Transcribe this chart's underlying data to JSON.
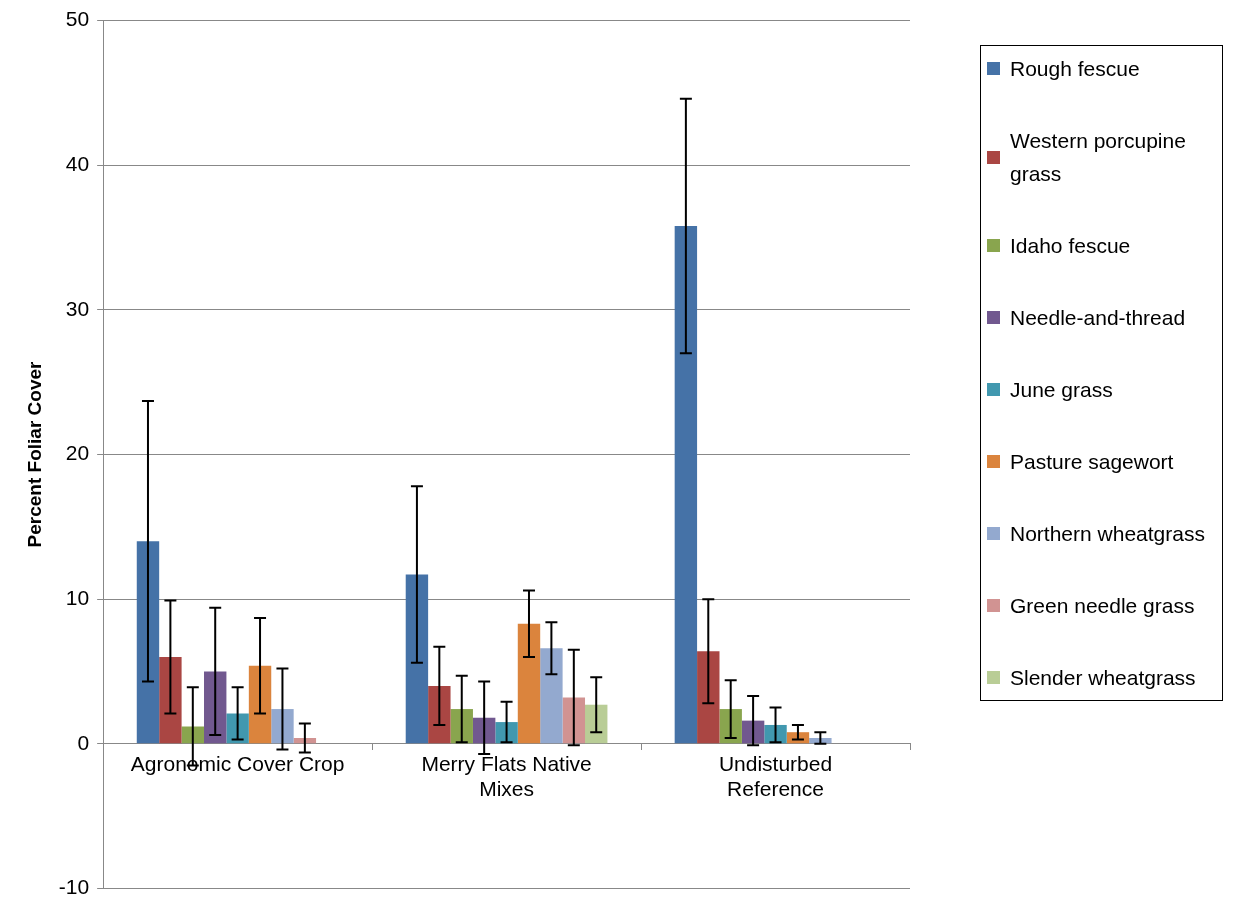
{
  "chart_data": {
    "type": "bar",
    "ylabel": "Percent Foliar Cover",
    "categories": [
      "Agronomic Cover Crop",
      "Merry Flats Native Mixes",
      "Undisturbed Reference"
    ],
    "series": [
      {
        "name": "Rough fescue",
        "color": "#4572a7",
        "values": [
          14.0,
          11.7,
          35.8
        ],
        "errors": [
          9.7,
          6.1,
          8.8
        ]
      },
      {
        "name": "Western porcupine grass",
        "color": "#aa4643",
        "values": [
          6.0,
          4.0,
          6.4
        ],
        "errors": [
          3.9,
          2.7,
          3.6
        ]
      },
      {
        "name": "Idaho fescue",
        "color": "#89a54e",
        "values": [
          1.2,
          2.4,
          2.4
        ],
        "errors": [
          2.7,
          2.3,
          2.0
        ]
      },
      {
        "name": "Needle-and-thread",
        "color": "#71588f",
        "values": [
          5.0,
          1.8,
          1.6
        ],
        "errors": [
          4.4,
          2.5,
          1.7
        ]
      },
      {
        "name": "June grass",
        "color": "#4198af",
        "values": [
          2.1,
          1.5,
          1.3
        ],
        "errors": [
          1.8,
          1.4,
          1.2
        ]
      },
      {
        "name": "Pasture sagewort",
        "color": "#db843d",
        "values": [
          5.4,
          8.3,
          0.8
        ],
        "errors": [
          3.3,
          2.3,
          0.5
        ]
      },
      {
        "name": "Northern wheatgrass",
        "color": "#93a9cf",
        "values": [
          2.4,
          6.6,
          0.4
        ],
        "errors": [
          2.8,
          1.8,
          0.4
        ]
      },
      {
        "name": "Green needle grass",
        "color": "#d19392",
        "values": [
          0.4,
          3.2,
          0.0
        ],
        "errors": [
          1.0,
          3.3,
          null
        ]
      },
      {
        "name": "Slender wheatgrass",
        "color": "#b9cd96",
        "values": [
          0.0,
          2.7,
          0.0
        ],
        "errors": [
          null,
          1.9,
          null
        ]
      }
    ],
    "ylim": [
      -10,
      50
    ],
    "yticks": [
      -10,
      0,
      10,
      20,
      30,
      40,
      50
    ],
    "grid": "y",
    "legend": "right"
  }
}
